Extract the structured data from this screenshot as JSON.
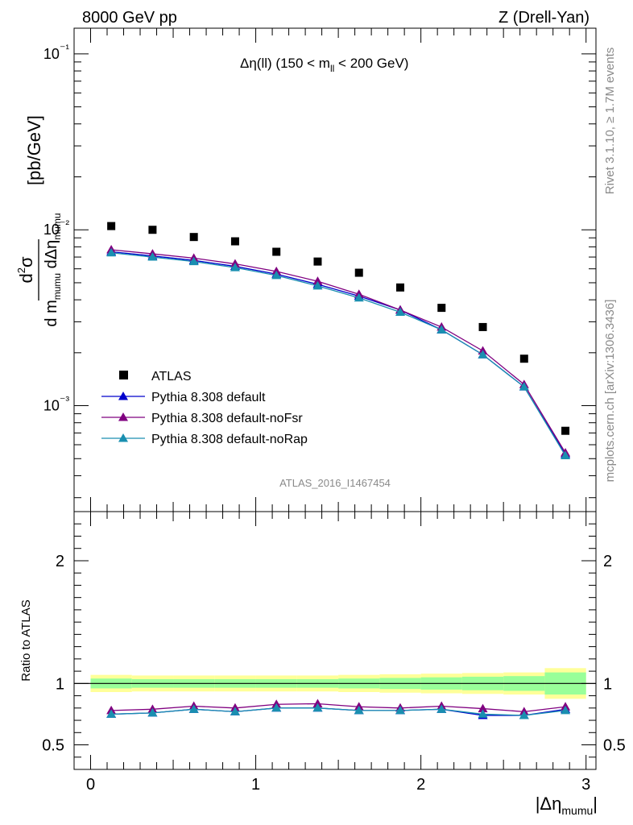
{
  "header": {
    "left": "8000 GeV pp",
    "right": "Z (Drell-Yan)"
  },
  "annotation": "Δη(ll) (150 < m_ll < 200 GeV)",
  "side_labels": {
    "rivet": "Rivet 3.1.10, ≥ 1.7M events",
    "mcplots": "mcplots.cern.ch [arXiv:1306.3436]"
  },
  "analysis_id": "ATLAS_2016_I1467454",
  "colors": {
    "atlas": "#000000",
    "default": "#0000cc",
    "noFsr": "#800080",
    "noRap": "#1a8fb0",
    "band_outer": "#ffff99",
    "band_inner": "#99ff99"
  },
  "chart_data": [
    {
      "type": "scatter",
      "title": "Δη(ll) (150 < m_ll < 200 GeV)",
      "xlabel": "|Δη_mumu|",
      "ylabel": "d²σ / d m_mumu dΔη_mumu [pb/GeV]",
      "yscale": "log",
      "xlim": [
        -0.1,
        3.06
      ],
      "ylim": [
        0.00025,
        0.14
      ],
      "y_ticks": [
        "10⁻³",
        "10⁻²",
        "10⁻¹"
      ],
      "legend_position": "lower-left",
      "x": [
        0.125,
        0.375,
        0.625,
        0.875,
        1.125,
        1.375,
        1.625,
        1.875,
        2.125,
        2.375,
        2.625,
        2.875
      ],
      "series": [
        {
          "name": "ATLAS",
          "marker": "square",
          "values": [
            0.0105,
            0.01,
            0.0091,
            0.0086,
            0.0075,
            0.0066,
            0.0057,
            0.0047,
            0.0036,
            0.0028,
            0.00185,
            0.00072
          ]
        },
        {
          "name": "Pythia 8.308 default",
          "marker": "triangle",
          "values": [
            0.0075,
            0.0071,
            0.0067,
            0.0062,
            0.0056,
            0.0049,
            0.0042,
            0.0035,
            0.0027,
            0.00195,
            0.00128,
            0.00053
          ]
        },
        {
          "name": "Pythia 8.308 default-noFsr",
          "marker": "triangle",
          "values": [
            0.0077,
            0.0073,
            0.0069,
            0.0064,
            0.0058,
            0.0051,
            0.0043,
            0.0035,
            0.0028,
            0.00205,
            0.00132,
            0.00054
          ]
        },
        {
          "name": "Pythia 8.308 default-noRap",
          "marker": "triangle",
          "values": [
            0.0074,
            0.007,
            0.0066,
            0.0061,
            0.0055,
            0.0048,
            0.0041,
            0.0034,
            0.0027,
            0.00195,
            0.00128,
            0.00052
          ]
        }
      ]
    },
    {
      "type": "line",
      "ylabel": "Ratio to ATLAS",
      "xlabel": "|Δη_mumu|",
      "xlim": [
        -0.1,
        3.06
      ],
      "ylim": [
        0.3,
        2.4
      ],
      "x_ticks": [
        "0",
        "1",
        "2",
        "3"
      ],
      "y_ticks": [
        "0.5",
        "1",
        "2"
      ],
      "x": [
        0.125,
        0.375,
        0.625,
        0.875,
        1.125,
        1.375,
        1.625,
        1.875,
        2.125,
        2.375,
        2.625,
        2.875
      ],
      "bands": {
        "edges": [
          0,
          0.25,
          0.5,
          0.75,
          1.0,
          1.25,
          1.5,
          1.75,
          2.0,
          2.25,
          2.5,
          2.75,
          3.0
        ],
        "outer_halfwidth": [
          0.07,
          0.065,
          0.065,
          0.065,
          0.065,
          0.065,
          0.07,
          0.075,
          0.08,
          0.085,
          0.09,
          0.125
        ],
        "inner_halfwidth": [
          0.04,
          0.035,
          0.035,
          0.035,
          0.035,
          0.035,
          0.04,
          0.045,
          0.05,
          0.055,
          0.06,
          0.09
        ]
      },
      "series": [
        {
          "name": "Pythia 8.308 default",
          "values": [
            0.75,
            0.76,
            0.79,
            0.77,
            0.8,
            0.8,
            0.78,
            0.78,
            0.79,
            0.74,
            0.74,
            0.79
          ]
        },
        {
          "name": "Pythia 8.308 default-noFsr",
          "values": [
            0.78,
            0.79,
            0.815,
            0.8,
            0.83,
            0.835,
            0.81,
            0.8,
            0.815,
            0.795,
            0.77,
            0.81
          ]
        },
        {
          "name": "Pythia 8.308 default-noRap",
          "values": [
            0.75,
            0.76,
            0.79,
            0.77,
            0.8,
            0.8,
            0.78,
            0.78,
            0.79,
            0.75,
            0.74,
            0.78
          ]
        }
      ]
    }
  ]
}
